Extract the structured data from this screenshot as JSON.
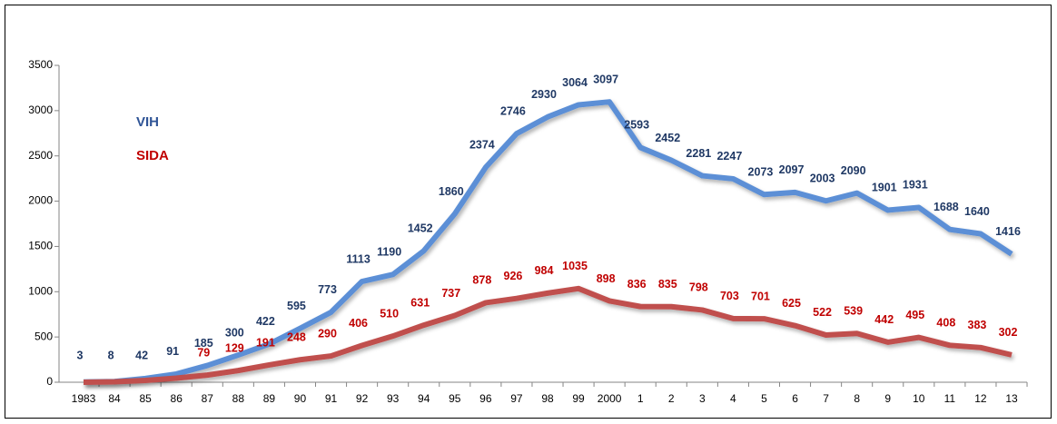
{
  "chart_data": {
    "type": "line",
    "categories": [
      "1983",
      "84",
      "85",
      "86",
      "87",
      "88",
      "89",
      "90",
      "91",
      "92",
      "93",
      "94",
      "95",
      "96",
      "97",
      "98",
      "99",
      "2000",
      "1",
      "2",
      "3",
      "4",
      "5",
      "6",
      "7",
      "8",
      "9",
      "10",
      "11",
      "12",
      "13"
    ],
    "series": [
      {
        "name": "VIH",
        "color": "#5b8fd6",
        "label_color": "#1f3864",
        "values": [
          3,
          8,
          42,
          91,
          185,
          300,
          422,
          595,
          773,
          1113,
          1190,
          1452,
          1860,
          2374,
          2746,
          2930,
          3064,
          3097,
          2593,
          2452,
          2281,
          2247,
          2073,
          2097,
          2003,
          2090,
          1901,
          1931,
          1688,
          1640,
          1416
        ]
      },
      {
        "name": "SIDA",
        "color": "#c0504d",
        "label_color": "#c00000",
        "values": [
          0,
          5,
          20,
          45,
          79,
          129,
          191,
          248,
          290,
          406,
          510,
          631,
          737,
          878,
          926,
          984,
          1035,
          898,
          836,
          835,
          798,
          703,
          701,
          625,
          522,
          539,
          442,
          495,
          408,
          383,
          302
        ],
        "value_labels": [
          null,
          null,
          null,
          null,
          "79",
          "129",
          "191",
          "248",
          "290",
          "406",
          "510",
          "631",
          "737",
          "878",
          "926",
          "984",
          "1035",
          "898",
          "836",
          "835",
          "798",
          "703",
          "701",
          "625",
          "522",
          "539",
          "442",
          "495",
          "408",
          "383",
          "302"
        ]
      }
    ],
    "ylim": [
      0,
      3500
    ],
    "yticks": [
      0,
      500,
      1000,
      1500,
      2000,
      2500,
      3000,
      3500
    ],
    "grid": false
  }
}
